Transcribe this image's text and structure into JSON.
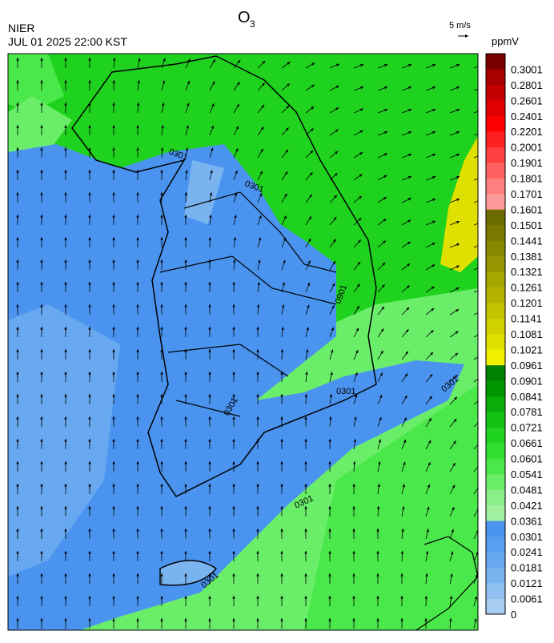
{
  "header": {
    "title": "O",
    "title_subscript": "3",
    "agency": "NIER",
    "timestamp": "JUL 01 2025 22:00 KST",
    "wind_scale": "5 m/s"
  },
  "colorbar": {
    "unit": "ppmV",
    "levels": [
      0,
      0.0061,
      0.0121,
      0.0181,
      0.0241,
      0.0301,
      0.0361,
      0.0421,
      0.0481,
      0.0541,
      0.0601,
      0.0661,
      0.0721,
      0.0781,
      0.0841,
      0.0901,
      0.0961,
      0.1021,
      0.1081,
      0.1141,
      0.1201,
      0.1261,
      0.1321,
      0.1381,
      0.1441,
      0.1501,
      0.1601,
      0.1701,
      0.1801,
      0.1901,
      0.2001,
      0.2201,
      0.2401,
      0.2601,
      0.2801,
      0.3001
    ],
    "colors": [
      "#a6cdf0",
      "#90c0f0",
      "#7ab4f0",
      "#68a8f0",
      "#5a9ef0",
      "#4a94f0",
      "#a0f0a0",
      "#8aee8a",
      "#6aee6a",
      "#4ae84a",
      "#30e030",
      "#1ed21e",
      "#12c212",
      "#0aae0a",
      "#009800",
      "#008000",
      "#f0f000",
      "#e0e000",
      "#d2d200",
      "#c4c400",
      "#b4b400",
      "#a6a600",
      "#969600",
      "#888800",
      "#7a7a00",
      "#6c6c00",
      "#ff9a9a",
      "#ff7e7e",
      "#ff6060",
      "#ff4040",
      "#ff2020",
      "#ff0000",
      "#e00000",
      "#c40000",
      "#a60000",
      "#7a0000"
    ]
  },
  "map": {
    "contour_labels": [
      "0301",
      "0301",
      "0901",
      "0301",
      "0301",
      "0301",
      "0301",
      "0301"
    ]
  }
}
